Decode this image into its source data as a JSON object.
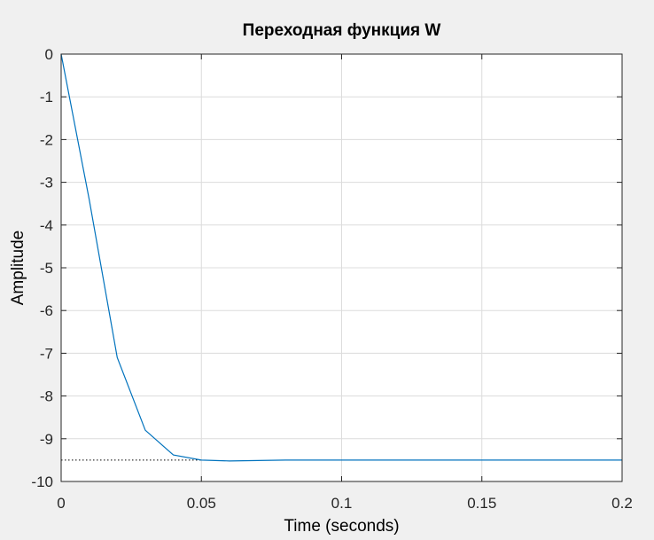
{
  "chart_data": {
    "type": "line",
    "title": "Переходная функция W",
    "xlabel": "Time (seconds)",
    "ylabel": "Amplitude",
    "xlim": [
      0,
      0.2
    ],
    "ylim": [
      -10,
      0
    ],
    "grid": true,
    "x_ticks": [
      "0",
      "0.05",
      "0.1",
      "0.15",
      "0.2"
    ],
    "y_ticks": [
      "0",
      "-1",
      "-2",
      "-3",
      "-4",
      "-5",
      "-6",
      "-7",
      "-8",
      "-9",
      "-10"
    ],
    "series": [
      {
        "color": "#0072bd",
        "x": [
          0,
          0.01,
          0.02,
          0.03,
          0.04,
          0.05,
          0.06,
          0.07,
          0.08,
          0.1,
          0.15,
          0.2
        ],
        "y": [
          0,
          -3.4,
          -7.1,
          -8.8,
          -9.38,
          -9.5,
          -9.52,
          -9.51,
          -9.5,
          -9.5,
          -9.5,
          -9.5
        ]
      }
    ],
    "steady_state": {
      "y": -9.5,
      "x_range": [
        0,
        0.05
      ],
      "style": "dotted",
      "color": "#000000"
    },
    "colors": {
      "figure_background": "#f0f0f0",
      "axes_background": "#ffffff",
      "grid": "#dcdcdc",
      "axes": "#262626"
    }
  }
}
